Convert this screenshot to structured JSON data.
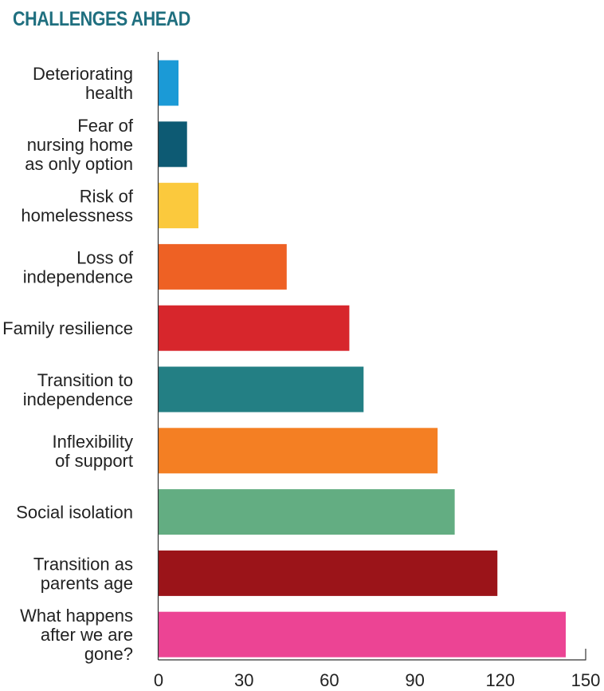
{
  "title": "CHALLENGES AHEAD",
  "colors": {
    "title": "#1f6f7f",
    "axis": "#333333",
    "text": "#222222"
  },
  "chart_data": {
    "type": "bar",
    "orientation": "horizontal",
    "title": "CHALLENGES AHEAD",
    "xlabel": "",
    "ylabel": "",
    "xlim": [
      0,
      150
    ],
    "xticks": [
      0,
      30,
      60,
      90,
      120,
      150
    ],
    "grid": false,
    "legend": "none",
    "categories": [
      [
        "Deteriorating",
        "health"
      ],
      [
        "Fear of",
        "nursing home",
        "as only option"
      ],
      [
        "Risk of",
        "homelessness"
      ],
      [
        "Loss of",
        "independence"
      ],
      [
        "Family resilience"
      ],
      [
        "Transition to",
        "independence"
      ],
      [
        "Inflexibility",
        "of support"
      ],
      [
        "Social isolation"
      ],
      [
        "Transition as",
        "parents age"
      ],
      [
        "What happens",
        "after we are",
        "gone?"
      ]
    ],
    "values": [
      7,
      10,
      14,
      45,
      67,
      72,
      98,
      104,
      119,
      143
    ],
    "bar_colors": [
      "#1b9ad6",
      "#0d5a73",
      "#fbc93d",
      "#ee6124",
      "#d7262c",
      "#237f84",
      "#f47f23",
      "#63ad82",
      "#9b1419",
      "#ec4494"
    ]
  }
}
